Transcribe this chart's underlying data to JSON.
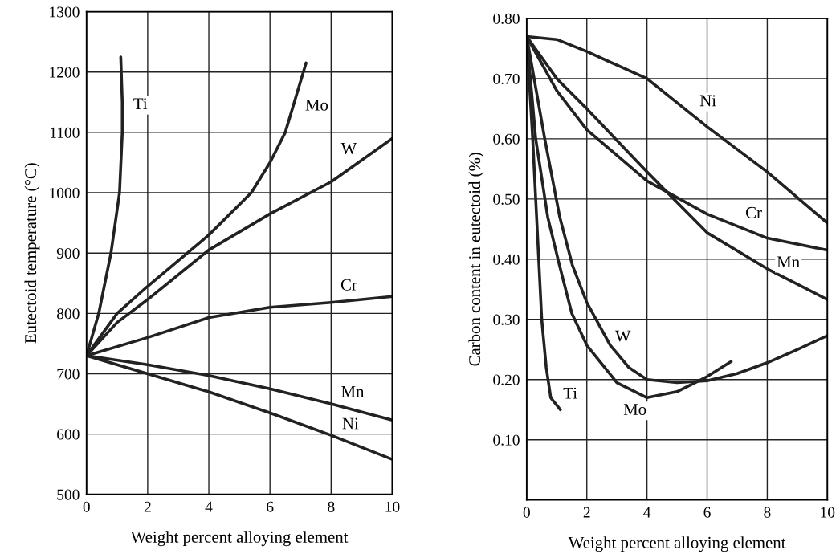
{
  "chart_data": [
    {
      "type": "line",
      "xlabel": "Weight percent alloying element",
      "ylabel": "Eutectoid temperature (°C)",
      "xlim": [
        0,
        10
      ],
      "ylim": [
        500,
        1300
      ],
      "xticks": [
        0,
        2,
        4,
        6,
        8,
        10
      ],
      "yticks": [
        500,
        600,
        700,
        800,
        900,
        1000,
        1100,
        1200,
        1300
      ],
      "grid": true,
      "line_style": "solid",
      "series": [
        {
          "color": "#222222",
          "x": [
            0,
            0.4,
            0.8,
            1.08,
            1.17,
            1.17,
            1.12
          ],
          "values": [
            730,
            800,
            900,
            1000,
            1100,
            1150,
            1225
          ]
        },
        {
          "color": "#222222",
          "x": [
            0,
            1,
            2,
            4,
            5.39,
            6,
            6.5,
            7.18
          ],
          "values": [
            730,
            800,
            845,
            930,
            1000,
            1050,
            1100,
            1215
          ]
        },
        {
          "color": "#222222",
          "x": [
            0,
            1,
            2,
            4,
            6,
            8,
            10
          ],
          "values": [
            730,
            785,
            823,
            905,
            965,
            1018,
            1090
          ]
        },
        {
          "color": "#222222",
          "x": [
            0,
            2,
            4,
            6,
            8,
            10
          ],
          "values": [
            730,
            760,
            793,
            810,
            818,
            828
          ]
        },
        {
          "color": "#222222",
          "x": [
            0,
            2,
            4,
            6,
            8,
            10
          ],
          "values": [
            730,
            715,
            697,
            675,
            650,
            623
          ]
        },
        {
          "color": "#222222",
          "x": [
            0,
            2,
            4,
            6,
            8,
            10
          ],
          "values": [
            730,
            700,
            670,
            635,
            598,
            558
          ]
        }
      ],
      "annotations": [
        {
          "text": "Ti",
          "x": 1.76,
          "y": 1145
        },
        {
          "text": "Mo",
          "x": 7.53,
          "y": 1143
        },
        {
          "text": "W",
          "x": 8.58,
          "y": 1071
        },
        {
          "text": "Cr",
          "x": 8.58,
          "y": 845
        },
        {
          "text": "Mn",
          "x": 8.7,
          "y": 668
        },
        {
          "text": "Ni",
          "x": 8.63,
          "y": 615
        }
      ]
    },
    {
      "type": "line",
      "xlabel": "Weight percent alloying element",
      "ylabel": "Carbon content in eutectoid (%)",
      "xlim": [
        0,
        10
      ],
      "ylim": [
        0,
        0.8
      ],
      "xticks": [
        0,
        2,
        4,
        6,
        8,
        10
      ],
      "yticks": [
        {
          "value": 0.1,
          "label": "0.10"
        },
        {
          "value": 0.2,
          "label": "0.20"
        },
        {
          "value": 0.3,
          "label": "0.30"
        },
        {
          "value": 0.4,
          "label": "0.40"
        },
        {
          "value": 0.5,
          "label": "0.50"
        },
        {
          "value": 0.6,
          "label": "0.60"
        },
        {
          "value": 0.7,
          "label": "0.70"
        },
        {
          "value": 0.8,
          "label": "0.80"
        }
      ],
      "grid": true,
      "line_style": "solid",
      "series": [
        {
          "color": "#222222",
          "x": [
            0,
            1,
            2,
            4,
            6,
            8,
            10
          ],
          "values": [
            0.77,
            0.765,
            0.745,
            0.7,
            0.62,
            0.545,
            0.46
          ]
        },
        {
          "color": "#222222",
          "x": [
            0,
            1,
            2,
            4,
            6,
            8,
            10
          ],
          "values": [
            0.77,
            0.68,
            0.615,
            0.53,
            0.475,
            0.435,
            0.415
          ]
        },
        {
          "color": "#222222",
          "x": [
            0,
            1,
            2,
            4,
            6,
            8,
            10
          ],
          "values": [
            0.77,
            0.7,
            0.65,
            0.545,
            0.444,
            0.384,
            0.333
          ]
        },
        {
          "color": "#222222",
          "x": [
            0,
            0.6,
            1.1,
            1.52,
            2,
            2.78,
            3.4,
            4,
            5,
            6,
            7,
            8,
            9,
            10
          ],
          "values": [
            0.77,
            0.6,
            0.47,
            0.39,
            0.328,
            0.257,
            0.22,
            0.2,
            0.195,
            0.198,
            0.21,
            0.228,
            0.25,
            0.273
          ]
        },
        {
          "color": "#222222",
          "x": [
            0,
            0.3,
            0.7,
            1.09,
            1.5,
            2,
            3,
            4,
            5,
            6,
            6.8
          ],
          "values": [
            0.77,
            0.6,
            0.47,
            0.39,
            0.31,
            0.257,
            0.195,
            0.17,
            0.18,
            0.205,
            0.23
          ]
        },
        {
          "color": "#222222",
          "x": [
            0,
            0.2,
            0.35,
            0.5,
            0.65,
            0.8,
            1.12
          ],
          "values": [
            0.77,
            0.6,
            0.45,
            0.3,
            0.22,
            0.17,
            0.15
          ]
        }
      ],
      "annotations": [
        {
          "text": "Ni",
          "x": 6.03,
          "y": 0.661
        },
        {
          "text": "Cr",
          "x": 7.55,
          "y": 0.475
        },
        {
          "text": "Mn",
          "x": 8.7,
          "y": 0.393
        },
        {
          "text": "W",
          "x": 3.2,
          "y": 0.27
        },
        {
          "text": "Mo",
          "x": 3.6,
          "y": 0.148
        },
        {
          "text": "Ti",
          "x": 1.45,
          "y": 0.175
        }
      ]
    }
  ]
}
